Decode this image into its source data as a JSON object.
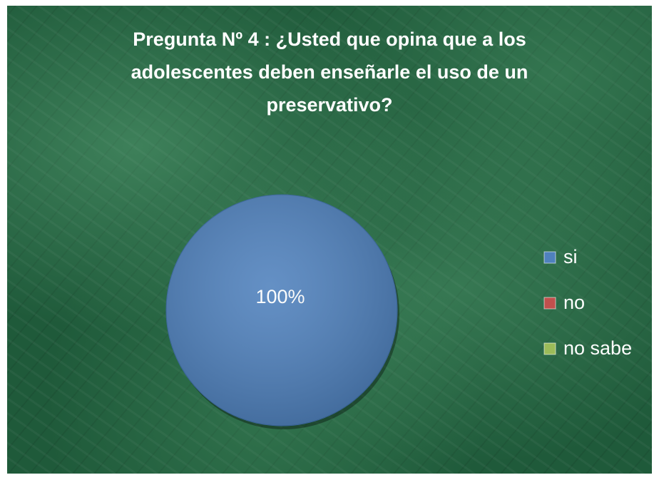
{
  "chart_data": {
    "type": "pie",
    "title": "Pregunta Nº 4 : ¿Usted que opina que a los adolescentes deben enseñarle el uso de un preservativo?",
    "categories": [
      "si",
      "no",
      "no sabe"
    ],
    "values": [
      100,
      0,
      0
    ],
    "value_labels": [
      "100%",
      null,
      null
    ],
    "colors": [
      "#4f81bd",
      "#c0504d",
      "#9bbb59"
    ],
    "legend": "right"
  }
}
